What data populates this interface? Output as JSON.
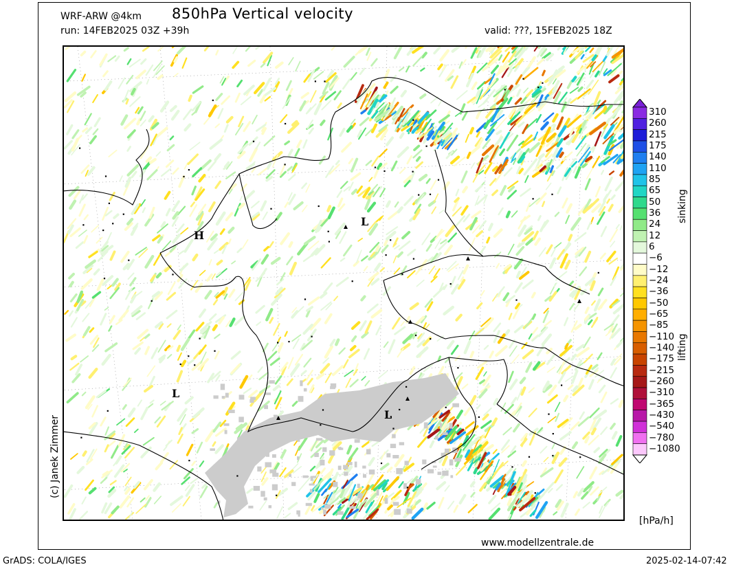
{
  "header": {
    "model": "WRF-ARW @4km",
    "title": "850hPa Vertical velocity",
    "run": "run: 14FEB2025 03Z +39h",
    "valid": "valid: ???, 15FEB2025 18Z"
  },
  "footer": {
    "copyright": "(c) Janek Zimmer",
    "website": "www.modellzentrale.de",
    "software": "GrADS: COLA/IGES",
    "timestamp": "2025-02-14-07:42"
  },
  "colorbar": {
    "unit": "[hPa/h]",
    "positive_label": "sinking",
    "negative_label": "lifting",
    "levels": [
      {
        "label": "310",
        "color": "#8a2be2"
      },
      {
        "label": "260",
        "color": "#5020e0"
      },
      {
        "label": "215",
        "color": "#1c1cd8"
      },
      {
        "label": "175",
        "color": "#1e4fe6"
      },
      {
        "label": "140",
        "color": "#1f7ff0"
      },
      {
        "label": "110",
        "color": "#1fa3f3"
      },
      {
        "label": "85",
        "color": "#20c3e8"
      },
      {
        "label": "65",
        "color": "#20d6c4"
      },
      {
        "label": "50",
        "color": "#2fd98c"
      },
      {
        "label": "36",
        "color": "#55e070"
      },
      {
        "label": "24",
        "color": "#90ea88"
      },
      {
        "label": "12",
        "color": "#c0f2b2"
      },
      {
        "label": "6",
        "color": "#e4f8dc"
      },
      {
        "label": "−6",
        "color": "#ffffff"
      },
      {
        "label": "−12",
        "color": "#fffcc8"
      },
      {
        "label": "−24",
        "color": "#fff070"
      },
      {
        "label": "−36",
        "color": "#ffe020"
      },
      {
        "label": "−50",
        "color": "#ffc800"
      },
      {
        "label": "−65",
        "color": "#ffae00"
      },
      {
        "label": "−85",
        "color": "#f59400"
      },
      {
        "label": "−110",
        "color": "#e87800"
      },
      {
        "label": "−140",
        "color": "#d85e00"
      },
      {
        "label": "−175",
        "color": "#c84400"
      },
      {
        "label": "−215",
        "color": "#b82a10"
      },
      {
        "label": "−260",
        "color": "#a61818"
      },
      {
        "label": "−310",
        "color": "#b0103a"
      },
      {
        "label": "−365",
        "color": "#c00870"
      },
      {
        "label": "−430",
        "color": "#b818a8"
      },
      {
        "label": "−540",
        "color": "#d030d8"
      },
      {
        "label": "−780",
        "color": "#f070f0"
      },
      {
        "label": "−1080",
        "color": "#fcc8fc"
      }
    ],
    "top_arrow_color": "#7a20d8",
    "bottom_arrow_color": "#ffffff"
  },
  "map": {
    "pressure_centers": [
      {
        "label": "L"
      },
      {
        "label": "H"
      },
      {
        "label": "L"
      },
      {
        "label": "L"
      }
    ],
    "terrain_mask_color": "#cccccc",
    "border_color": "#000000",
    "grid_color": "#888888"
  }
}
